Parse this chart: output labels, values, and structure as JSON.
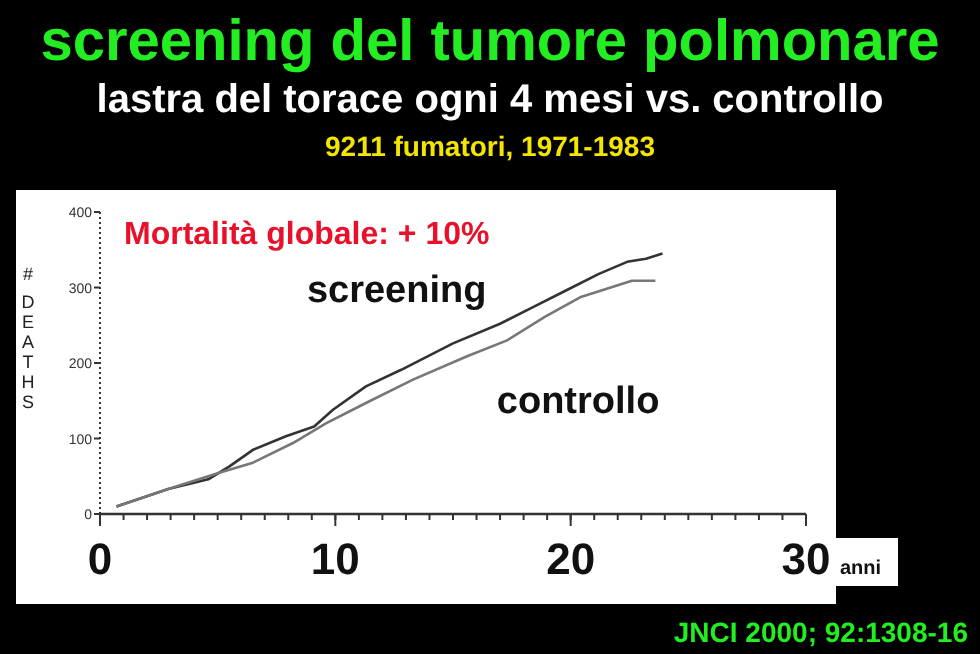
{
  "chart_data": {
    "type": "line",
    "title": "screening del tumore polmonare",
    "subtitle": "lastra del torace  ogni 4 mesi vs. controllo",
    "ylabel": "# DEATHS",
    "xlabel": "anni",
    "annotations": [
      "9211 fumatori, 1971-1983",
      "Mortalità globale: + 10%",
      "JNCI 2000; 92:1308-16"
    ],
    "xlim": [
      0,
      30
    ],
    "xticks": [
      0,
      10,
      20,
      30
    ],
    "ylim": [
      0,
      400
    ],
    "yticks": [
      0,
      100,
      200,
      300,
      400
    ],
    "grid": false,
    "legend": false,
    "marker": "none",
    "line_style": "solid",
    "series": [
      {
        "name": "screening",
        "color": "#333333",
        "x": [
          0.7,
          2.9,
          4.6,
          5.5,
          6.5,
          7.9,
          9.1,
          9.9,
          11.3,
          12.8,
          15.0,
          17.0,
          18.4,
          19.8,
          21.2,
          22.4,
          23.2,
          23.9
        ],
        "values": [
          10,
          33,
          46,
          63,
          85,
          103,
          116,
          138,
          169,
          191,
          226,
          252,
          274,
          296,
          318,
          334,
          338,
          345
        ]
      },
      {
        "name": "controllo",
        "color": "#777777",
        "x": [
          0.7,
          2.9,
          5.1,
          6.5,
          8.2,
          9.6,
          11.3,
          13.3,
          15.6,
          17.3,
          18.9,
          20.4,
          21.8,
          22.6,
          23.6
        ],
        "values": [
          10,
          33,
          55,
          68,
          94,
          120,
          147,
          178,
          209,
          230,
          261,
          287,
          301,
          309,
          309
        ]
      }
    ]
  }
}
